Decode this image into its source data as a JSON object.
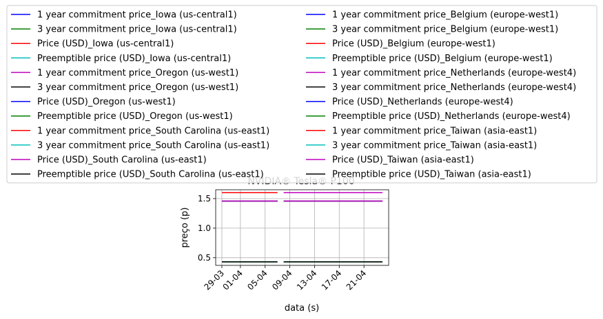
{
  "chart_data": {
    "type": "line",
    "title": "NVIDIA® Tesla® P100",
    "xlabel": "data (s)",
    "ylabel": "preço (p)",
    "xlim": [
      "2018-03-28",
      "2018-04-25"
    ],
    "ylim": [
      0.37,
      1.65
    ],
    "x_ticks": [
      {
        "date": "2018-03-29",
        "label": "29-03"
      },
      {
        "date": "2018-04-01",
        "label": "01-04"
      },
      {
        "date": "2018-04-05",
        "label": "05-04"
      },
      {
        "date": "2018-04-09",
        "label": "09-04"
      },
      {
        "date": "2018-04-13",
        "label": "13-04"
      },
      {
        "date": "2018-04-17",
        "label": "17-04"
      },
      {
        "date": "2018-04-21",
        "label": "21-04"
      }
    ],
    "y_ticks": [
      {
        "value": 0.5,
        "label": "0.5"
      },
      {
        "value": 1.0,
        "label": "1.0"
      },
      {
        "value": 1.5,
        "label": "1.5"
      }
    ],
    "grid": true,
    "legend_placement": "above plot, two columns",
    "series": [
      {
        "name": "1 year commitment price_Iowa (us-central1)",
        "color": "#0000ff",
        "x": [
          "2018-03-29",
          "2018-04-07"
        ],
        "y": [
          1.46,
          1.46
        ]
      },
      {
        "name": "3 year commitment price_Iowa (us-central1)",
        "color": "#008000",
        "x": [
          "2018-03-29",
          "2018-04-07"
        ],
        "y": [
          1.46,
          1.46
        ]
      },
      {
        "name": "Price (USD)_Iowa (us-central1)",
        "color": "#ff0000",
        "x": [
          "2018-03-29",
          "2018-04-07"
        ],
        "y": [
          1.46,
          1.46
        ]
      },
      {
        "name": "Preemptible price (USD)_Iowa (us-central1)",
        "color": "#00bfbf",
        "x": [
          "2018-03-29",
          "2018-04-07"
        ],
        "y": [
          0.43,
          0.43
        ]
      },
      {
        "name": "1 year commitment price_Oregon (us-west1)",
        "color": "#bf00bf",
        "x": [
          "2018-03-29",
          "2018-04-07"
        ],
        "y": [
          1.46,
          1.46
        ]
      },
      {
        "name": "3 year commitment price_Oregon (us-west1)",
        "color": "#000000",
        "x": [
          "2018-03-29",
          "2018-04-07"
        ],
        "y": [
          1.46,
          1.46
        ]
      },
      {
        "name": "Price (USD)_Oregon (us-west1)",
        "color": "#0000ff",
        "x": [
          "2018-03-29",
          "2018-04-07"
        ],
        "y": [
          1.46,
          1.46
        ]
      },
      {
        "name": "Preemptible price (USD)_Oregon (us-west1)",
        "color": "#008000",
        "x": [
          "2018-03-29",
          "2018-04-07"
        ],
        "y": [
          0.43,
          0.43
        ]
      },
      {
        "name": "1 year commitment price_South Carolina (us-east1)",
        "color": "#ff0000",
        "x": [
          "2018-03-29",
          "2018-04-07"
        ],
        "y": [
          1.46,
          1.46
        ]
      },
      {
        "name": "3 year commitment price_South Carolina (us-east1)",
        "color": "#00bfbf",
        "x": [
          "2018-03-29",
          "2018-04-07"
        ],
        "y": [
          1.46,
          1.46
        ]
      },
      {
        "name": "Price (USD)_South Carolina (us-east1)",
        "color": "#bf00bf",
        "x": [
          "2018-03-29",
          "2018-04-07"
        ],
        "y": [
          1.46,
          1.46
        ]
      },
      {
        "name": "Preemptible price (USD)_South Carolina (us-east1)",
        "color": "#000000",
        "x": [
          "2018-03-29",
          "2018-04-07"
        ],
        "y": [
          0.43,
          0.43
        ]
      },
      {
        "name": "1 year commitment price_Belgium (europe-west1)",
        "color": "#0000ff",
        "x": [
          "2018-04-08",
          "2018-04-24"
        ],
        "y": [
          1.46,
          1.46
        ]
      },
      {
        "name": "3 year commitment price_Belgium (europe-west1)",
        "color": "#008000",
        "x": [
          "2018-04-08",
          "2018-04-24"
        ],
        "y": [
          1.46,
          1.46
        ]
      },
      {
        "name": "Price (USD)_Belgium (europe-west1)",
        "color": "#ff0000",
        "x": [
          "2018-04-08",
          "2018-04-24"
        ],
        "y": [
          1.46,
          1.46
        ]
      },
      {
        "name": "Preemptible price (USD)_Belgium (europe-west1)",
        "color": "#00bfbf",
        "x": [
          "2018-04-08",
          "2018-04-24"
        ],
        "y": [
          0.43,
          0.43
        ]
      },
      {
        "name": "1 year commitment price_Netherlands (europe-west4)",
        "color": "#bf00bf",
        "x": [
          "2018-04-08",
          "2018-04-24"
        ],
        "y": [
          1.46,
          1.46
        ]
      },
      {
        "name": "3 year commitment price_Netherlands (europe-west4)",
        "color": "#000000",
        "x": [
          "2018-04-08",
          "2018-04-24"
        ],
        "y": [
          1.46,
          1.46
        ]
      },
      {
        "name": "Price (USD)_Netherlands (europe-west4)",
        "color": "#0000ff",
        "x": [
          "2018-04-08",
          "2018-04-24"
        ],
        "y": [
          1.46,
          1.46
        ]
      },
      {
        "name": "Preemptible price (USD)_Netherlands (europe-west4)",
        "color": "#008000",
        "x": [
          "2018-04-08",
          "2018-04-24"
        ],
        "y": [
          0.43,
          0.43
        ]
      },
      {
        "name": "1 year commitment price_Taiwan (asia-east1)",
        "color": "#ff0000",
        "x": [
          "2018-04-08",
          "2018-04-24"
        ],
        "y": [
          1.46,
          1.46
        ]
      },
      {
        "name": "3 year commitment price_Taiwan (asia-east1)",
        "color": "#00bfbf",
        "x": [
          "2018-04-08",
          "2018-04-24"
        ],
        "y": [
          1.46,
          1.46
        ]
      },
      {
        "name": "Price (USD)_Taiwan (asia-east1)",
        "color": "#bf00bf",
        "x": [
          "2018-04-08",
          "2018-04-24"
        ],
        "y": [
          1.46,
          1.46
        ]
      },
      {
        "name": "Preemptible price (USD)_Taiwan (asia-east1)",
        "color": "#000000",
        "x": [
          "2018-04-08",
          "2018-04-24"
        ],
        "y": [
          0.43,
          0.43
        ]
      }
    ],
    "overlays": [
      {
        "color": "#ff0000",
        "x": [
          "2018-03-29",
          "2018-04-07"
        ],
        "y": [
          1.6,
          1.6
        ]
      },
      {
        "color": "#bf00bf",
        "x": [
          "2018-04-08",
          "2018-04-24"
        ],
        "y": [
          1.6,
          1.6
        ]
      }
    ]
  }
}
